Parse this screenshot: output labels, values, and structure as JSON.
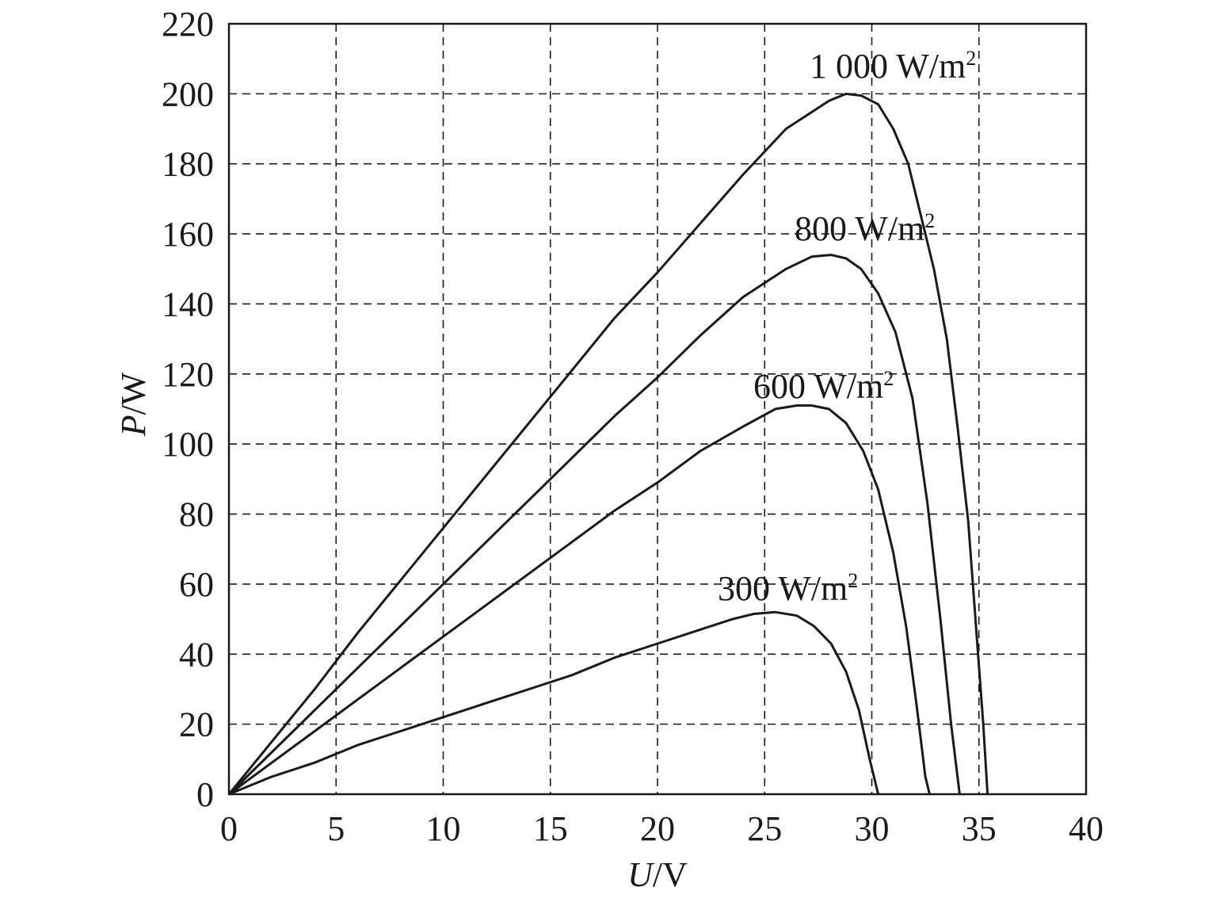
{
  "chart_data": {
    "type": "line",
    "title": "",
    "xlabel": {
      "var": "U",
      "unit": "/V"
    },
    "ylabel": {
      "var": "P",
      "unit": "/W"
    },
    "xlim": [
      0,
      40
    ],
    "ylim": [
      0,
      220
    ],
    "xticks": [
      0,
      5,
      10,
      15,
      20,
      25,
      30,
      35,
      40
    ],
    "yticks": [
      0,
      20,
      40,
      60,
      80,
      100,
      120,
      140,
      160,
      180,
      200,
      220
    ],
    "grid": true,
    "grid_style": "dashed",
    "series": [
      {
        "name": "1 000 W/m2",
        "label_main": "1 000 W/m",
        "label_sup": "2",
        "points": [
          [
            0,
            0
          ],
          [
            2,
            15
          ],
          [
            4,
            30
          ],
          [
            6,
            46
          ],
          [
            8,
            61
          ],
          [
            10,
            76
          ],
          [
            12,
            91
          ],
          [
            14,
            106
          ],
          [
            16,
            121
          ],
          [
            18,
            136
          ],
          [
            20,
            149
          ],
          [
            22,
            163
          ],
          [
            24,
            177
          ],
          [
            26,
            190
          ],
          [
            28,
            198
          ],
          [
            28.8,
            200
          ],
          [
            29.5,
            199.5
          ],
          [
            30.3,
            197
          ],
          [
            31,
            190
          ],
          [
            31.7,
            180
          ],
          [
            32.3,
            165
          ],
          [
            32.9,
            150
          ],
          [
            33.5,
            130
          ],
          [
            34,
            105
          ],
          [
            34.5,
            78
          ],
          [
            34.9,
            45
          ],
          [
            35.2,
            20
          ],
          [
            35.4,
            0
          ]
        ]
      },
      {
        "name": "800 W/m2",
        "label_main": "800 W/m",
        "label_sup": "2",
        "points": [
          [
            0,
            0
          ],
          [
            2,
            12
          ],
          [
            4,
            24
          ],
          [
            6,
            36
          ],
          [
            8,
            48
          ],
          [
            10,
            60
          ],
          [
            12,
            72
          ],
          [
            14,
            84
          ],
          [
            16,
            96
          ],
          [
            18,
            108
          ],
          [
            20,
            119
          ],
          [
            22,
            131
          ],
          [
            24,
            142
          ],
          [
            26,
            150
          ],
          [
            27.2,
            153.5
          ],
          [
            28.1,
            154
          ],
          [
            28.8,
            153
          ],
          [
            29.5,
            150
          ],
          [
            30.3,
            143
          ],
          [
            31.1,
            132
          ],
          [
            31.9,
            113
          ],
          [
            32.6,
            83
          ],
          [
            33.2,
            50
          ],
          [
            33.7,
            20
          ],
          [
            34.1,
            0
          ]
        ]
      },
      {
        "name": "600 W/m2",
        "label_main": "600 W/m",
        "label_sup": "2",
        "points": [
          [
            0,
            0
          ],
          [
            2,
            9
          ],
          [
            4,
            18
          ],
          [
            6,
            27
          ],
          [
            8,
            36
          ],
          [
            10,
            45
          ],
          [
            12,
            54
          ],
          [
            14,
            63
          ],
          [
            16,
            72
          ],
          [
            18,
            81
          ],
          [
            20,
            89
          ],
          [
            22,
            98
          ],
          [
            24,
            105
          ],
          [
            25.5,
            110
          ],
          [
            26.5,
            111
          ],
          [
            27.2,
            111
          ],
          [
            28,
            110
          ],
          [
            28.8,
            106
          ],
          [
            29.6,
            98
          ],
          [
            30.3,
            87
          ],
          [
            31,
            69
          ],
          [
            31.6,
            48
          ],
          [
            32.1,
            25
          ],
          [
            32.5,
            5
          ],
          [
            32.7,
            0
          ]
        ]
      },
      {
        "name": "300 W/m2",
        "label_main": "300 W/m",
        "label_sup": "2",
        "points": [
          [
            0,
            0
          ],
          [
            2,
            5
          ],
          [
            4,
            9
          ],
          [
            6,
            14
          ],
          [
            8,
            18
          ],
          [
            10,
            22
          ],
          [
            12,
            26
          ],
          [
            14,
            30
          ],
          [
            16,
            34
          ],
          [
            18,
            39
          ],
          [
            20,
            43
          ],
          [
            22,
            47
          ],
          [
            23.5,
            50
          ],
          [
            24.5,
            51.5
          ],
          [
            25.5,
            52
          ],
          [
            26.5,
            51
          ],
          [
            27.3,
            48
          ],
          [
            28.1,
            43
          ],
          [
            28.8,
            35
          ],
          [
            29.4,
            24
          ],
          [
            29.9,
            10
          ],
          [
            30.3,
            0
          ]
        ]
      }
    ]
  }
}
